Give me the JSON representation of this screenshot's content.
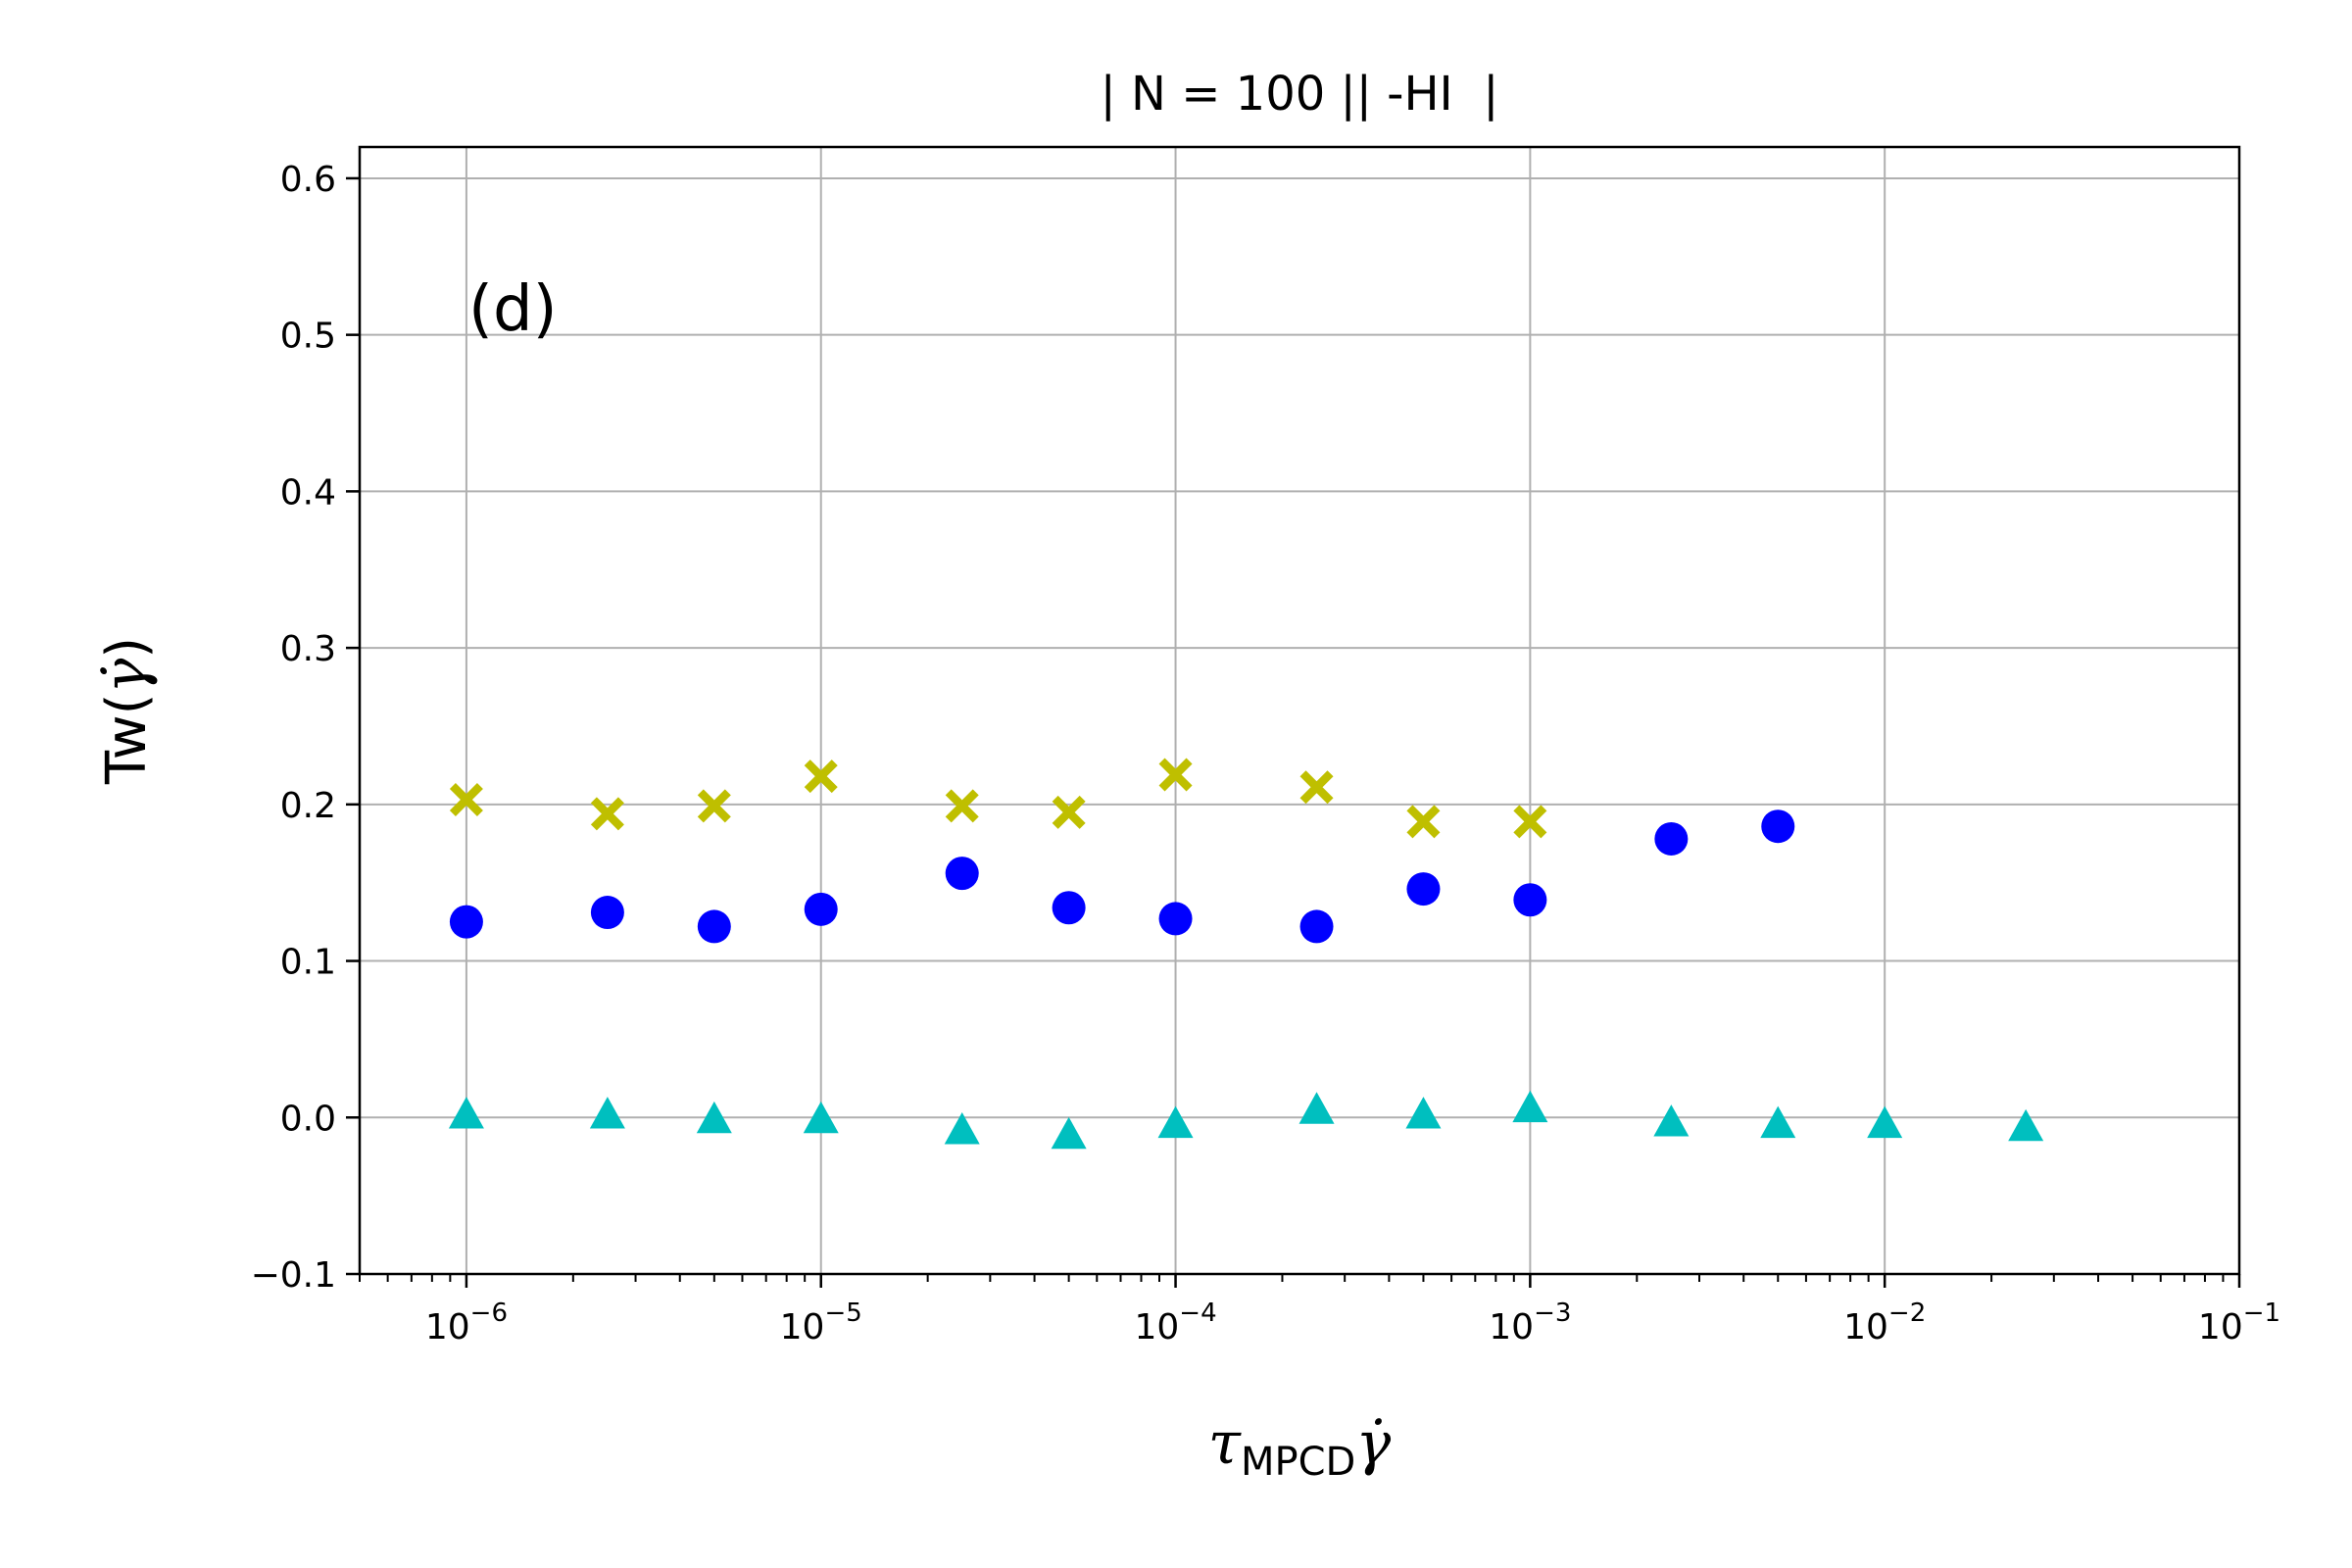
{
  "chart_data": {
    "type": "scatter",
    "title": "| N = 100 || -HI  |",
    "panel_label": "(d)",
    "xlabel": {
      "symbol": "τ",
      "subscript": "MPCD",
      "gamma": "γ̇"
    },
    "ylabel": {
      "text": "Tw(",
      "gamma": "γ̇",
      "close": ")"
    },
    "xscale": "log",
    "xlim": [
      5e-07,
      0.1
    ],
    "ylim": [
      -0.1,
      0.62
    ],
    "grid": true,
    "x_ticks": [
      {
        "value": 1e-06,
        "base": "10",
        "exp": "−6"
      },
      {
        "value": 1e-05,
        "base": "10",
        "exp": "−5"
      },
      {
        "value": 0.0001,
        "base": "10",
        "exp": "−4"
      },
      {
        "value": 0.001,
        "base": "10",
        "exp": "−3"
      },
      {
        "value": 0.01,
        "base": "10",
        "exp": "−2"
      },
      {
        "value": 0.1,
        "base": "10",
        "exp": "−1"
      }
    ],
    "y_ticks": [
      {
        "value": -0.1,
        "label": "−0.1"
      },
      {
        "value": 0.0,
        "label": "0.0"
      },
      {
        "value": 0.1,
        "label": "0.1"
      },
      {
        "value": 0.2,
        "label": "0.2"
      },
      {
        "value": 0.3,
        "label": "0.3"
      },
      {
        "value": 0.4,
        "label": "0.4"
      },
      {
        "value": 0.5,
        "label": "0.5"
      },
      {
        "value": 0.6,
        "label": "0.6"
      }
    ],
    "series": [
      {
        "name": "yellow-x",
        "marker": "X",
        "color": "#bfbf00",
        "x": [
          1e-06,
          2.5e-06,
          5e-06,
          1e-05,
          2.5e-05,
          5e-05,
          0.0001,
          0.00025,
          0.0005,
          0.001
        ],
        "y": [
          0.203,
          0.194,
          0.199,
          0.218,
          0.199,
          0.195,
          0.219,
          0.211,
          0.189,
          0.189
        ]
      },
      {
        "name": "blue-circle",
        "marker": "o",
        "color": "#0000ff",
        "x": [
          1e-06,
          2.5e-06,
          5e-06,
          1e-05,
          2.5e-05,
          5e-05,
          0.0001,
          0.00025,
          0.0005,
          0.001,
          0.0025,
          0.005
        ],
        "y": [
          0.125,
          0.131,
          0.122,
          0.133,
          0.156,
          0.134,
          0.127,
          0.122,
          0.146,
          0.139,
          0.178,
          0.186
        ]
      },
      {
        "name": "cyan-triangle",
        "marker": "^",
        "color": "#00bfbf",
        "x": [
          1e-06,
          2.5e-06,
          5e-06,
          1e-05,
          2.5e-05,
          5e-05,
          0.0001,
          0.00025,
          0.0005,
          0.001,
          0.0025,
          0.005,
          0.01,
          0.025
        ],
        "y": [
          0.002,
          0.002,
          -0.001,
          -0.001,
          -0.008,
          -0.011,
          -0.004,
          0.005,
          0.002,
          0.006,
          -0.003,
          -0.004,
          -0.004,
          -0.006
        ]
      }
    ]
  }
}
